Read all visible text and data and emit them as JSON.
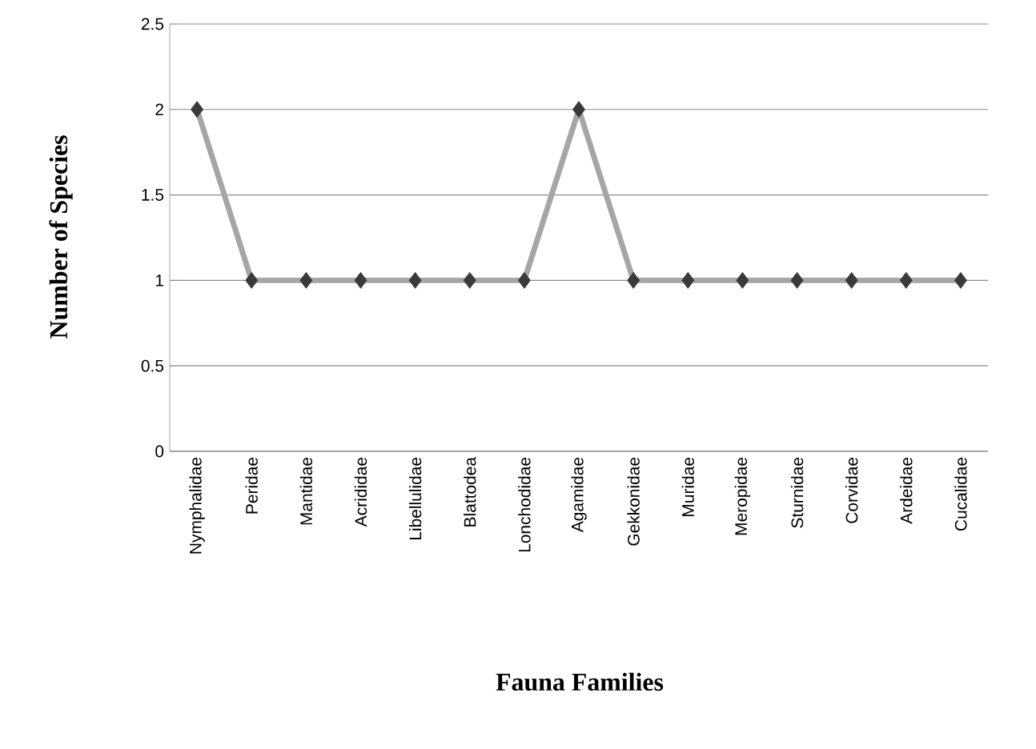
{
  "chart_data": {
    "type": "line",
    "xlabel": "Fauna Families",
    "ylabel": "Number of Species",
    "categories": [
      "Nymphalidae",
      "Peridae",
      "Mantidae",
      "Acrididae",
      "Libellulidae",
      "Blattodea",
      "Lonchodidae",
      "Agamidae",
      "Gekkonidae",
      "Muridae",
      "Meropidae",
      "Sturnidae",
      "Corvidae",
      "Ardeidae",
      "Cucalidae"
    ],
    "values": [
      2,
      1,
      1,
      1,
      1,
      1,
      1,
      2,
      1,
      1,
      1,
      1,
      1,
      1,
      1
    ],
    "color": "#a6a6a6",
    "marker": "diamond",
    "line_style": "solid",
    "ylim": [
      0,
      2.5
    ],
    "yticks": [
      0,
      0.5,
      1,
      1.5,
      2,
      2.5
    ],
    "grid": "y"
  }
}
